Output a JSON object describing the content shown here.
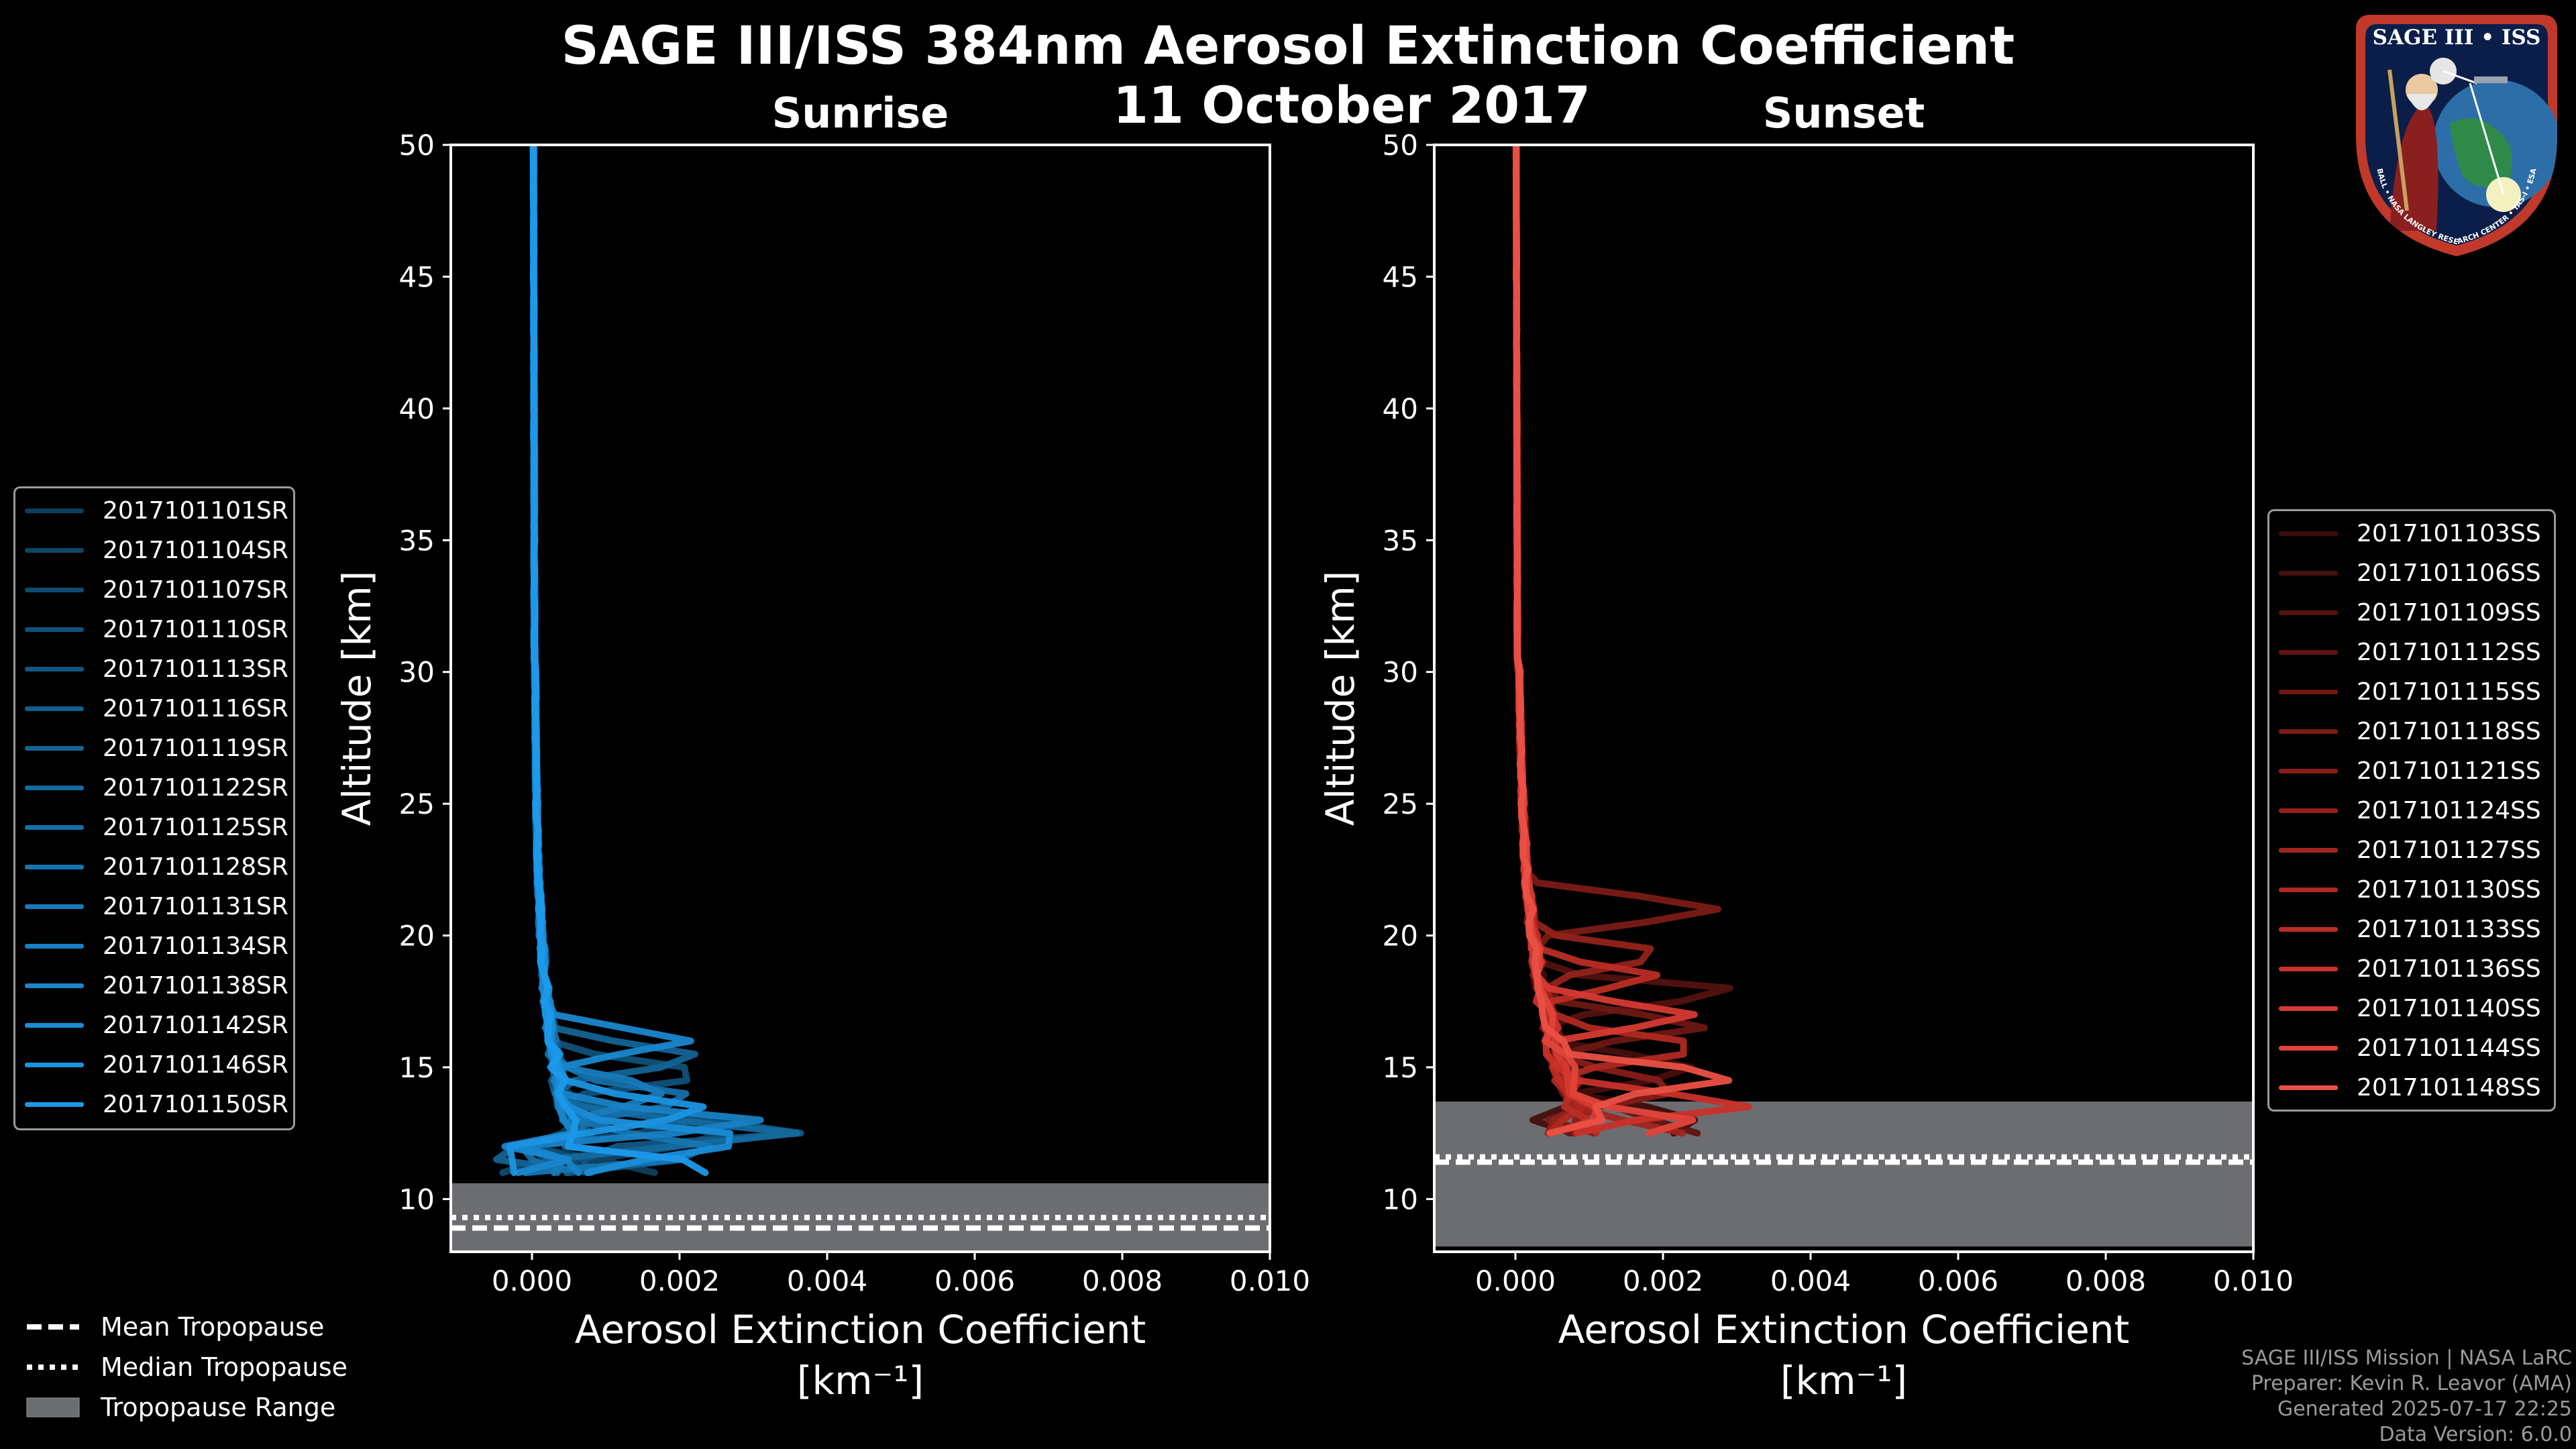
{
  "title": {
    "line1": "SAGE III/ISS 384nm Aerosol Extinction Coefficient",
    "line2": "11 October 2017"
  },
  "logo": {
    "text": "SAGE III • ISS",
    "ring_text": "BALL • NASA LANGLEY RESEARCH CENTER • TAS-I • ESA"
  },
  "credits": {
    "line1": "SAGE III/ISS Mission | NASA LaRC",
    "line2": "Preparer: Kevin R. Leavor (AMA)",
    "line3": "Generated 2025-07-17 22:25",
    "line4": "Data Version: 6.0.0"
  },
  "tropopause_legend": {
    "mean": "Mean Tropopause",
    "median": "Median Tropopause",
    "range": "Tropopause Range"
  },
  "chart_data": [
    {
      "type": "line",
      "panel": "sunrise",
      "title": "Sunrise",
      "xlabel": "Aerosol Extinction Coefficient",
      "xunit": "[km⁻¹]",
      "ylabel": "Altitude [km]",
      "xlim": [
        -0.0011,
        0.01
      ],
      "ylim": [
        8,
        50
      ],
      "xticks": [
        "0.000",
        "0.002",
        "0.004",
        "0.006",
        "0.008",
        "0.010"
      ],
      "xtick_values": [
        0,
        0.002,
        0.004,
        0.006,
        0.008,
        0.01
      ],
      "yticks": [
        "10",
        "15",
        "20",
        "25",
        "30",
        "35",
        "40",
        "45",
        "50"
      ],
      "ytick_values": [
        10,
        15,
        20,
        25,
        30,
        35,
        40,
        45,
        50
      ],
      "tropopause": {
        "mean": 8.9,
        "median": 9.3,
        "range": [
          8,
          10.6
        ]
      },
      "legend_position": "left",
      "series": [
        {
          "name": "2017101101SR",
          "color": "#0d3f5c",
          "offset": -0.05,
          "peak": [
            11.0,
            0.0018
          ]
        },
        {
          "name": "2017101104SR",
          "color": "#0e4565",
          "offset": 0.02,
          "peak": [
            12.2,
            0.0024
          ]
        },
        {
          "name": "2017101107SR",
          "color": "#0f4b6f",
          "offset": -0.02,
          "peak": [
            13.0,
            0.0016
          ]
        },
        {
          "name": "2017101110SR",
          "color": "#105178",
          "offset": 0.04,
          "peak": [
            14.8,
            0.0021
          ]
        },
        {
          "name": "2017101113SR",
          "color": "#115782",
          "offset": -0.04,
          "peak": [
            12.6,
            0.0028
          ]
        },
        {
          "name": "2017101116SR",
          "color": "#125d8b",
          "offset": 0.01,
          "peak": [
            11.6,
            0.0013
          ]
        },
        {
          "name": "2017101119SR",
          "color": "#136395",
          "offset": 0.03,
          "peak": [
            15.4,
            0.0022
          ]
        },
        {
          "name": "2017101122SR",
          "color": "#14699e",
          "offset": -0.03,
          "peak": [
            12.4,
            0.0034
          ]
        },
        {
          "name": "2017101125SR",
          "color": "#156fa8",
          "offset": 0.05,
          "peak": [
            13.8,
            0.0019
          ]
        },
        {
          "name": "2017101128SR",
          "color": "#1675b1",
          "offset": -0.01,
          "peak": [
            11.8,
            0.0026
          ]
        },
        {
          "name": "2017101131SR",
          "color": "#177bbb",
          "offset": 0.02,
          "peak": [
            14.0,
            0.0015
          ]
        },
        {
          "name": "2017101134SR",
          "color": "#1881c4",
          "offset": -0.02,
          "peak": [
            12.9,
            0.0023
          ]
        },
        {
          "name": "2017101138SR",
          "color": "#1987ce",
          "offset": 0.0,
          "peak": [
            16.0,
            0.0017
          ]
        },
        {
          "name": "2017101142SR",
          "color": "#1a8dd7",
          "offset": 0.03,
          "peak": [
            12.1,
            0.003
          ]
        },
        {
          "name": "2017101146SR",
          "color": "#1b93e1",
          "offset": -0.04,
          "peak": [
            13.4,
            0.002
          ]
        },
        {
          "name": "2017101150SR",
          "color": "#1c99ea",
          "offset": 0.01,
          "peak": [
            11.3,
            0.0025
          ]
        }
      ]
    },
    {
      "type": "line",
      "panel": "sunset",
      "title": "Sunset",
      "xlabel": "Aerosol Extinction Coefficient",
      "xunit": "[km⁻¹]",
      "ylabel": "Altitude [km]",
      "xlim": [
        -0.0011,
        0.01
      ],
      "ylim": [
        8,
        50
      ],
      "xticks": [
        "0.000",
        "0.002",
        "0.004",
        "0.006",
        "0.008",
        "0.010"
      ],
      "xtick_values": [
        0,
        0.002,
        0.004,
        0.006,
        0.008,
        0.01
      ],
      "yticks": [
        "10",
        "15",
        "20",
        "25",
        "30",
        "35",
        "40",
        "45",
        "50"
      ],
      "ytick_values": [
        10,
        15,
        20,
        25,
        30,
        35,
        40,
        45,
        50
      ],
      "tropopause": {
        "mean": 11.4,
        "median": 11.6,
        "range": [
          8.2,
          13.7
        ]
      },
      "legend_position": "right",
      "series": [
        {
          "name": "2017101103SS",
          "color": "#3a0d0b",
          "offset": -0.03,
          "peak": [
            13.0,
            0.002
          ]
        },
        {
          "name": "2017101106SS",
          "color": "#460f0d",
          "offset": 0.02,
          "peak": [
            15.0,
            0.0018
          ]
        },
        {
          "name": "2017101109SS",
          "color": "#53120f",
          "offset": -0.01,
          "peak": [
            17.8,
            0.0028
          ]
        },
        {
          "name": "2017101112SS",
          "color": "#601511",
          "offset": 0.04,
          "peak": [
            12.6,
            0.0024
          ]
        },
        {
          "name": "2017101115SS",
          "color": "#6d1813",
          "offset": -0.04,
          "peak": [
            16.6,
            0.0021
          ]
        },
        {
          "name": "2017101118SS",
          "color": "#7a1b16",
          "offset": 0.01,
          "peak": [
            21.0,
            0.0026
          ]
        },
        {
          "name": "2017101121SS",
          "color": "#871e18",
          "offset": 0.03,
          "peak": [
            14.2,
            0.0015
          ]
        },
        {
          "name": "2017101124SS",
          "color": "#94221b",
          "offset": -0.02,
          "peak": [
            19.2,
            0.0019
          ]
        },
        {
          "name": "2017101127SS",
          "color": "#a1251e",
          "offset": 0.05,
          "peak": [
            12.2,
            0.0029
          ]
        },
        {
          "name": "2017101130SS",
          "color": "#ae2921",
          "offset": -0.01,
          "peak": [
            15.8,
            0.0022
          ]
        },
        {
          "name": "2017101133SS",
          "color": "#bb2d25",
          "offset": 0.02,
          "peak": [
            18.4,
            0.0016
          ]
        },
        {
          "name": "2017101136SS",
          "color": "#c8322a",
          "offset": -0.03,
          "peak": [
            13.6,
            0.0023
          ]
        },
        {
          "name": "2017101140SS",
          "color": "#d53a31",
          "offset": 0.0,
          "peak": [
            17.0,
            0.002
          ]
        },
        {
          "name": "2017101144SS",
          "color": "#e0443a",
          "offset": 0.03,
          "peak": [
            12.8,
            0.0018
          ]
        },
        {
          "name": "2017101148SS",
          "color": "#ea5045",
          "offset": -0.02,
          "peak": [
            14.6,
            0.0025
          ]
        }
      ]
    }
  ]
}
